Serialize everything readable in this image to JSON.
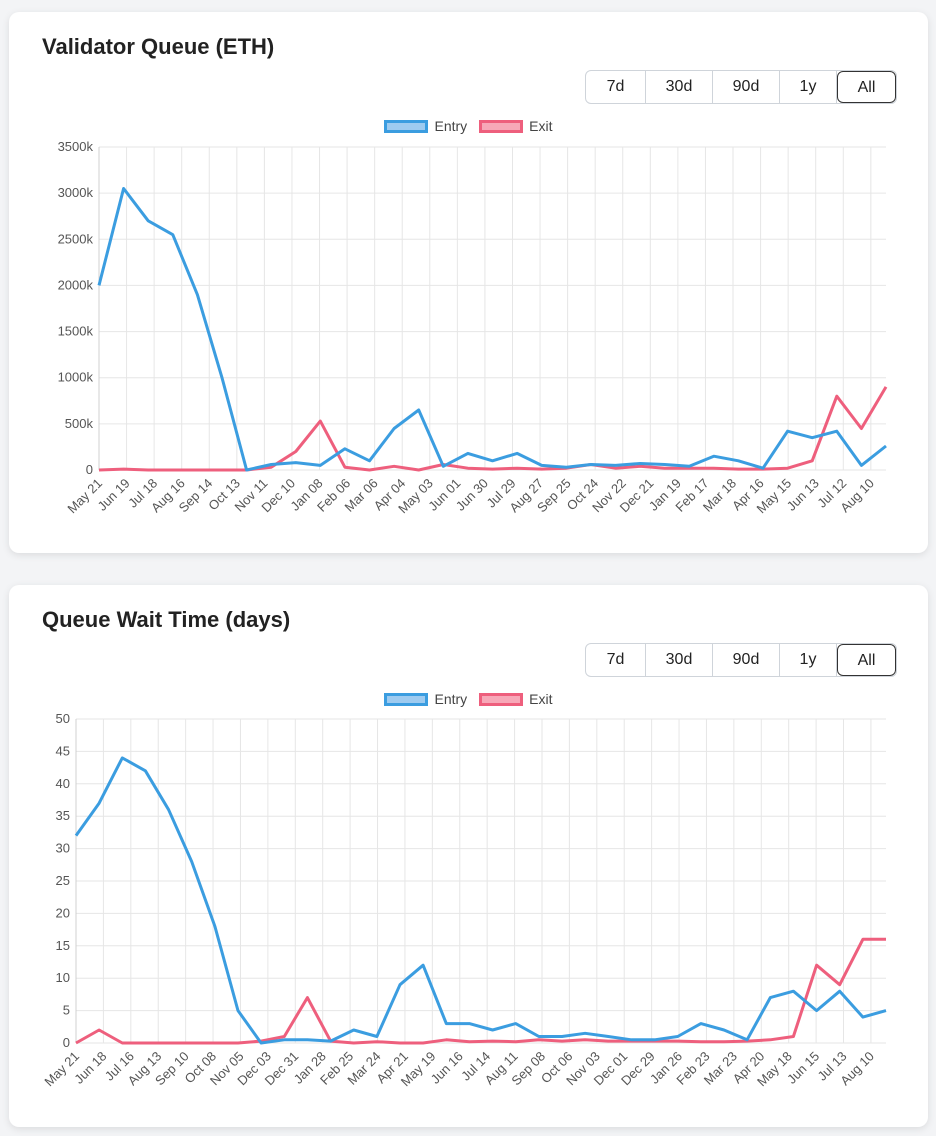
{
  "cards": [
    {
      "title": "Validator Queue (ETH)",
      "range_buttons": [
        "7d",
        "30d",
        "90d",
        "1y",
        "All"
      ],
      "active_range": "All",
      "legend": [
        {
          "label": "Entry",
          "fill": "#9ecbf0",
          "stroke": "#3b9de0"
        },
        {
          "label": "Exit",
          "fill": "#f7a8b8",
          "stroke": "#ee5f7d"
        }
      ]
    },
    {
      "title": "Queue Wait Time (days)",
      "range_buttons": [
        "7d",
        "30d",
        "90d",
        "1y",
        "All"
      ],
      "active_range": "All",
      "legend": [
        {
          "label": "Entry",
          "fill": "#9ecbf0",
          "stroke": "#3b9de0"
        },
        {
          "label": "Exit",
          "fill": "#f7a8b8",
          "stroke": "#ee5f7d"
        }
      ]
    }
  ],
  "chart_data": [
    {
      "type": "line",
      "title": "Validator Queue (ETH)",
      "xlabel": "",
      "ylabel": "",
      "ylim": [
        0,
        3500000
      ],
      "y_ticks": [
        0,
        500000,
        1000000,
        1500000,
        2000000,
        2500000,
        3000000,
        3500000
      ],
      "y_tick_labels": [
        "0",
        "500k",
        "1000k",
        "1500k",
        "2000k",
        "2500k",
        "3000k",
        "3500k"
      ],
      "x_tick_labels": [
        "May 21",
        "Jun 19",
        "Jul 18",
        "Aug 16",
        "Sep 14",
        "Oct 13",
        "Nov 11",
        "Dec 10",
        "Jan 08",
        "Feb 06",
        "Mar 06",
        "Apr 04",
        "May 03",
        "Jun 01",
        "Jun 30",
        "Jul 29",
        "Aug 27",
        "Sep 25",
        "Oct 24",
        "Nov 22",
        "Dec 21",
        "Jan 19",
        "Feb 17",
        "Mar 18",
        "Apr 16",
        "May 15",
        "Jun 13",
        "Jul 12",
        "Aug 10"
      ],
      "grid": true,
      "legend_position": "top",
      "series": [
        {
          "name": "Entry",
          "color": "#3b9de0",
          "values": [
            2000000,
            3050000,
            2700000,
            2550000,
            1900000,
            1000000,
            0,
            60000,
            80000,
            50000,
            230000,
            100000,
            450000,
            650000,
            40000,
            180000,
            100000,
            180000,
            50000,
            30000,
            60000,
            50000,
            70000,
            60000,
            40000,
            150000,
            100000,
            20000,
            420000,
            350000,
            420000,
            50000,
            260000
          ]
        },
        {
          "name": "Exit",
          "color": "#ee5f7d",
          "values": [
            0,
            10000,
            0,
            0,
            0,
            0,
            0,
            30000,
            200000,
            530000,
            30000,
            0,
            40000,
            0,
            60000,
            20000,
            10000,
            20000,
            10000,
            20000,
            60000,
            20000,
            40000,
            20000,
            20000,
            20000,
            10000,
            10000,
            20000,
            100000,
            800000,
            450000,
            900000
          ]
        }
      ]
    },
    {
      "type": "line",
      "title": "Queue Wait Time (days)",
      "xlabel": "",
      "ylabel": "",
      "ylim": [
        0,
        50
      ],
      "y_ticks": [
        0,
        5,
        10,
        15,
        20,
        25,
        30,
        35,
        40,
        45,
        50
      ],
      "y_tick_labels": [
        "0",
        "5",
        "10",
        "15",
        "20",
        "25",
        "30",
        "35",
        "40",
        "45",
        "50"
      ],
      "x_tick_labels": [
        "May 21",
        "Jun 18",
        "Jul 16",
        "Aug 13",
        "Sep 10",
        "Oct 08",
        "Nov 05",
        "Dec 03",
        "Dec 31",
        "Jan 28",
        "Feb 25",
        "Mar 24",
        "Apr 21",
        "May 19",
        "Jun 16",
        "Jul 14",
        "Aug 11",
        "Sep 08",
        "Oct 06",
        "Nov 03",
        "Dec 01",
        "Dec 29",
        "Jan 26",
        "Feb 23",
        "Mar 23",
        "Apr 20",
        "May 18",
        "Jun 15",
        "Jul 13",
        "Aug 10"
      ],
      "grid": true,
      "legend_position": "top",
      "series": [
        {
          "name": "Entry",
          "color": "#3b9de0",
          "values": [
            32,
            37,
            44,
            42,
            36,
            28,
            18,
            5,
            0,
            0.5,
            0.5,
            0.3,
            2,
            1,
            9,
            12,
            3,
            3,
            2,
            3,
            1,
            1,
            1.5,
            1,
            0.5,
            0.5,
            1,
            3,
            2,
            0.5,
            7,
            8,
            5,
            8,
            4,
            5
          ]
        },
        {
          "name": "Exit",
          "color": "#ee5f7d",
          "values": [
            0,
            2,
            0,
            0,
            0,
            0,
            0,
            0,
            0.3,
            1,
            7,
            0.3,
            0,
            0.2,
            0,
            0,
            0.5,
            0.2,
            0.3,
            0.2,
            0.5,
            0.3,
            0.5,
            0.3,
            0.3,
            0.3,
            0.3,
            0.2,
            0.2,
            0.3,
            0.5,
            1,
            12,
            9,
            16,
            16
          ]
        }
      ]
    }
  ]
}
